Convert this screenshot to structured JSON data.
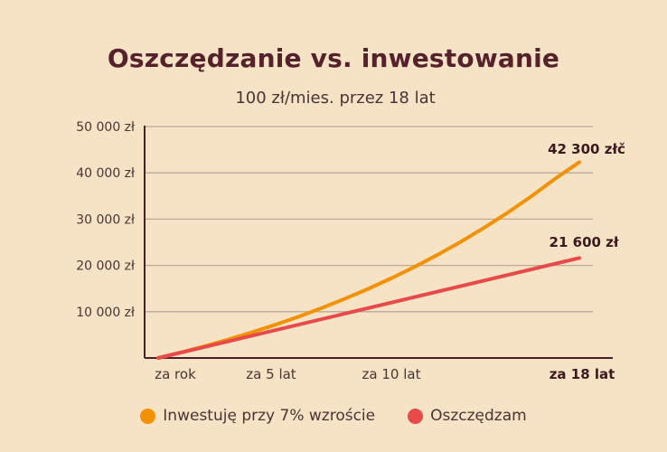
{
  "chart_data": {
    "type": "line",
    "title": "Oszczędzanie vs. inwestowanie",
    "subtitle": "100 zł/mies. przez 18 lat",
    "x_tick_labels": [
      "za rok",
      "za 5 lat",
      "za 10 lat",
      "za 18 lat"
    ],
    "x_tick_years": [
      1,
      5,
      10,
      18
    ],
    "x_range_years": [
      0,
      18
    ],
    "y_ticks": [
      10000,
      20000,
      30000,
      40000,
      50000
    ],
    "y_tick_labels": [
      "10 000 zł",
      "20 000  zł",
      "30 000 zł",
      "40 000 zł",
      "50 000 zł"
    ],
    "ylim": [
      0,
      50000
    ],
    "grid": true,
    "legend_position": "bottom",
    "series": [
      {
        "name": "Inwestuję przy 7% wzroście",
        "color": "#f39200",
        "x": [
          0,
          1,
          2,
          3,
          4,
          5,
          6,
          7,
          8,
          9,
          10,
          11,
          12,
          13,
          14,
          15,
          16,
          17,
          18
        ],
        "values": [
          0,
          1240,
          2570,
          4000,
          5530,
          7170,
          8920,
          10810,
          12830,
          14990,
          17310,
          19790,
          22450,
          25300,
          28350,
          31610,
          35110,
          38860,
          42300
        ],
        "end_label": "42 300 złč"
      },
      {
        "name": "Oszczędzam",
        "color": "#e84a4a",
        "x": [
          0,
          18
        ],
        "values": [
          0,
          21600
        ],
        "end_label": "21 600 zł"
      }
    ]
  }
}
